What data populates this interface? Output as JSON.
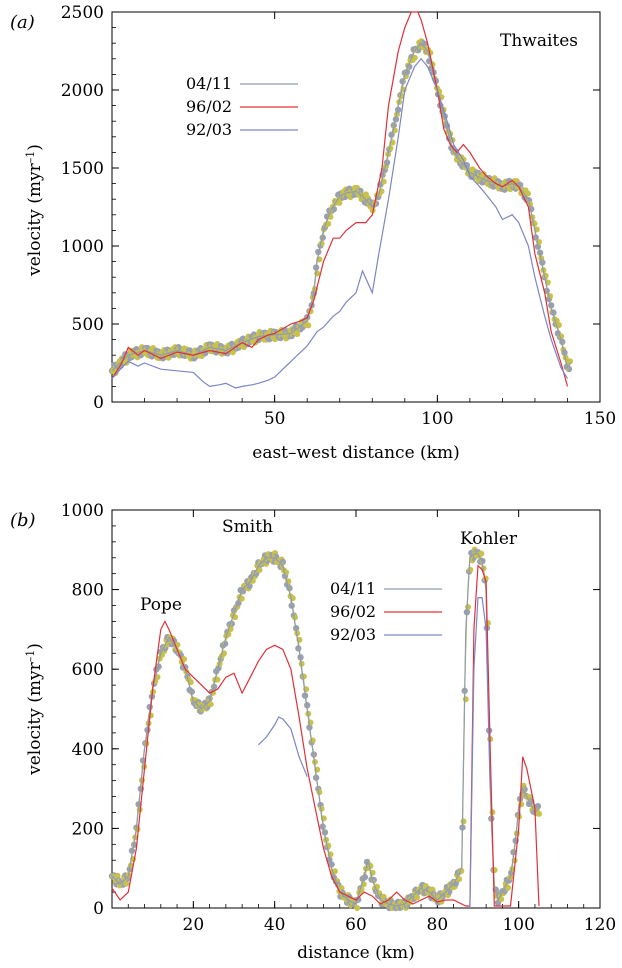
{
  "colors": {
    "series_0411": "#8f9bb0",
    "series_9602": "#e0303a",
    "series_9203": "#7d86c4",
    "markers_yellow": "#c8c24a",
    "markers_grey": "#98a0b2"
  },
  "chart_data": [
    {
      "type": "line",
      "panel_label": "(a)",
      "annotation": "Thwaites",
      "xlabel": "east–west distance (km)",
      "ylabel": "velocity (myr",
      "ylabel_sup": "–1",
      "ylabel_close": ")",
      "xlim": [
        0,
        150
      ],
      "ylim": [
        0,
        2500
      ],
      "xticks": [
        50,
        100,
        150
      ],
      "yticks": [
        0,
        500,
        1000,
        1500,
        2000,
        2500
      ],
      "legend_position": "upper-left",
      "series": [
        {
          "name": "04/11",
          "color": "#8f9bb0",
          "x": [
            0,
            3,
            5,
            10,
            15,
            20,
            25,
            30,
            35,
            40,
            45,
            50,
            55,
            60,
            62,
            63,
            65,
            67,
            70,
            72,
            75,
            77,
            80,
            82,
            85,
            88,
            90,
            93,
            95,
            97,
            100,
            103,
            105,
            110,
            115,
            118,
            120,
            123,
            125,
            128,
            130,
            133,
            135,
            138,
            140,
            141
          ],
          "y": [
            200,
            260,
            300,
            330,
            300,
            330,
            300,
            350,
            330,
            380,
            420,
            430,
            440,
            520,
            700,
            900,
            1100,
            1220,
            1320,
            1340,
            1350,
            1320,
            1250,
            1330,
            1600,
            1900,
            2100,
            2250,
            2300,
            2250,
            2000,
            1750,
            1600,
            1470,
            1420,
            1400,
            1380,
            1400,
            1380,
            1300,
            1100,
            800,
            600,
            400,
            220,
            250
          ]
        },
        {
          "name": "96/02",
          "color": "#e0303a",
          "x": [
            0,
            3,
            5,
            8,
            10,
            15,
            20,
            25,
            30,
            35,
            40,
            43,
            45,
            48,
            50,
            55,
            58,
            60,
            62,
            65,
            68,
            70,
            72,
            75,
            78,
            80,
            83,
            85,
            88,
            90,
            92,
            94,
            95,
            97,
            100,
            102,
            104,
            106,
            108,
            110,
            113,
            115,
            118,
            120,
            123,
            125,
            128,
            130,
            133,
            135,
            138,
            140
          ],
          "y": [
            150,
            250,
            350,
            300,
            330,
            280,
            320,
            300,
            330,
            310,
            380,
            350,
            400,
            430,
            440,
            500,
            520,
            540,
            650,
            900,
            1050,
            1050,
            1100,
            1150,
            1150,
            1200,
            1500,
            1900,
            2250,
            2400,
            2500,
            2500,
            2450,
            2300,
            2000,
            1750,
            1650,
            1600,
            1650,
            1600,
            1500,
            1450,
            1400,
            1380,
            1420,
            1380,
            1250,
            950,
            700,
            450,
            250,
            100
          ]
        },
        {
          "name": "92/03",
          "color": "#7d86c4",
          "x": [
            0,
            3,
            5,
            8,
            10,
            15,
            20,
            25,
            28,
            30,
            33,
            35,
            38,
            40,
            43,
            45,
            48,
            50,
            53,
            55,
            58,
            60,
            63,
            65,
            68,
            70,
            72,
            75,
            77,
            80,
            82,
            85,
            88,
            90,
            93,
            95,
            97,
            100,
            103,
            105,
            108,
            110,
            113,
            115,
            118,
            120,
            123,
            125,
            128,
            130,
            133,
            135,
            138,
            140
          ],
          "y": [
            150,
            220,
            260,
            230,
            250,
            210,
            200,
            190,
            130,
            100,
            110,
            120,
            90,
            100,
            110,
            120,
            140,
            160,
            220,
            260,
            320,
            360,
            450,
            480,
            550,
            580,
            640,
            700,
            840,
            700,
            950,
            1300,
            1700,
            2000,
            2150,
            2200,
            2150,
            2000,
            1800,
            1650,
            1550,
            1450,
            1380,
            1330,
            1250,
            1170,
            1200,
            1150,
            1000,
            800,
            550,
            400,
            220,
            150
          ]
        }
      ]
    },
    {
      "type": "line",
      "panel_label": "(b)",
      "annotations": [
        {
          "text": "Pope",
          "x": 14,
          "y": 770
        },
        {
          "text": "Smith",
          "x": 40,
          "y": 970
        },
        {
          "text": "Kohler",
          "x": 90,
          "y": 940
        }
      ],
      "xlabel": "distance (km)",
      "ylabel": "velocity (myr",
      "ylabel_sup": "–1",
      "ylabel_close": ")",
      "xlim": [
        0,
        120
      ],
      "ylim": [
        0,
        1000
      ],
      "xticks": [
        20,
        40,
        60,
        80,
        100,
        120
      ],
      "yticks": [
        0,
        200,
        400,
        600,
        800,
        1000
      ],
      "legend_position": "center-right",
      "series": [
        {
          "name": "04/11",
          "color": "#8f9bb0",
          "x": [
            0,
            2,
            4,
            6,
            8,
            10,
            12,
            14,
            16,
            18,
            20,
            22,
            24,
            26,
            28,
            30,
            32,
            34,
            36,
            38,
            40,
            42,
            44,
            46,
            48,
            50,
            52,
            54,
            56,
            58,
            60,
            62,
            63,
            64,
            66,
            68,
            70,
            72,
            74,
            76,
            78,
            80,
            82,
            84,
            86,
            87,
            88,
            89,
            90,
            91,
            92,
            93,
            94,
            95,
            96,
            97,
            98,
            99,
            100,
            101,
            102,
            103,
            104,
            105
          ],
          "y": [
            80,
            60,
            80,
            200,
            400,
            550,
            640,
            680,
            650,
            600,
            520,
            500,
            520,
            600,
            680,
            740,
            800,
            820,
            860,
            880,
            880,
            860,
            780,
            650,
            500,
            350,
            200,
            100,
            40,
            20,
            10,
            80,
            120,
            70,
            20,
            10,
            5,
            10,
            30,
            50,
            40,
            20,
            40,
            60,
            100,
            700,
            880,
            890,
            890,
            870,
            800,
            300,
            50,
            20,
            40,
            60,
            80,
            150,
            250,
            300,
            280,
            260,
            240,
            250
          ]
        },
        {
          "name": "96/02",
          "color": "#e0303a",
          "x": [
            0,
            2,
            4,
            6,
            8,
            10,
            12,
            13,
            14,
            16,
            18,
            20,
            22,
            24,
            26,
            28,
            30,
            32,
            34,
            36,
            38,
            40,
            42,
            44,
            46,
            48,
            50,
            52,
            54,
            56,
            58,
            60,
            62,
            64,
            66,
            68,
            70,
            72,
            74,
            76,
            78,
            80,
            82,
            84,
            86,
            87,
            88,
            89,
            90,
            91,
            92,
            93,
            94,
            95,
            96,
            98,
            100,
            101,
            102,
            103,
            104,
            105
          ],
          "y": [
            50,
            20,
            40,
            150,
            350,
            550,
            700,
            720,
            700,
            650,
            600,
            580,
            560,
            540,
            550,
            580,
            590,
            540,
            580,
            620,
            650,
            660,
            650,
            600,
            480,
            350,
            250,
            150,
            80,
            40,
            30,
            20,
            40,
            30,
            10,
            20,
            40,
            20,
            10,
            20,
            30,
            15,
            20,
            20,
            10,
            5,
            5,
            700,
            860,
            850,
            820,
            400,
            5,
            5,
            5,
            5,
            200,
            380,
            350,
            300,
            250,
            5
          ]
        },
        {
          "name": "92/03",
          "color": "#7d86c4",
          "x": [
            36,
            38,
            40,
            41,
            42,
            44,
            46,
            48,
            88,
            89,
            90,
            91,
            92,
            93
          ],
          "y": [
            410,
            430,
            460,
            480,
            475,
            450,
            380,
            330,
            0,
            600,
            780,
            780,
            700,
            300
          ]
        }
      ]
    }
  ]
}
